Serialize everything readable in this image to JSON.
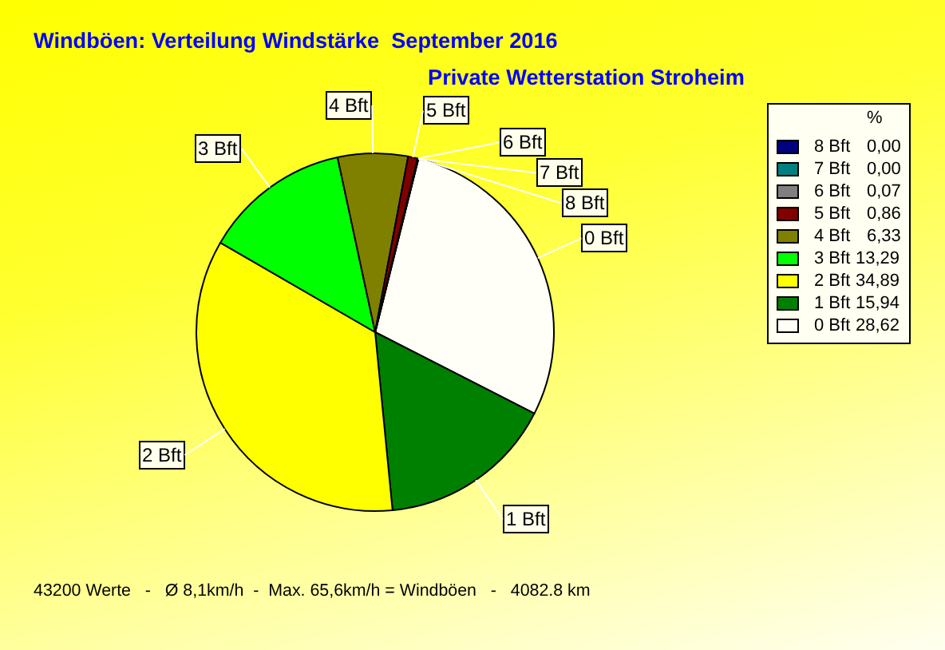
{
  "chart_data": {
    "type": "pie",
    "title": "Windböen: Verteilung Windstärke  September 2016",
    "subtitle": "Private Wetterstation Stroheim",
    "categories": [
      "0 Bft",
      "1 Bft",
      "2 Bft",
      "3 Bft",
      "4 Bft",
      "5 Bft",
      "6 Bft",
      "7 Bft",
      "8 Bft"
    ],
    "values": [
      28.62,
      15.94,
      34.89,
      13.29,
      6.33,
      0.86,
      0.07,
      0.0,
      0.0
    ],
    "value_labels": [
      "28,62",
      "15,94",
      "34,89",
      "13,29",
      "6,33",
      "0,86",
      "0,07",
      "0,00",
      "0,00"
    ],
    "colors": [
      "#fffff8",
      "#008000",
      "#ffff00",
      "#00ff00",
      "#808000",
      "#800000",
      "#808080",
      "#008080",
      "#000080"
    ],
    "legend": "right",
    "legend_title": "%",
    "annotations": [
      "43200 Werte   -   Ø 8,1km/h  -  Max. 65,6km/h = Windböen   -   4082.8 km"
    ]
  }
}
